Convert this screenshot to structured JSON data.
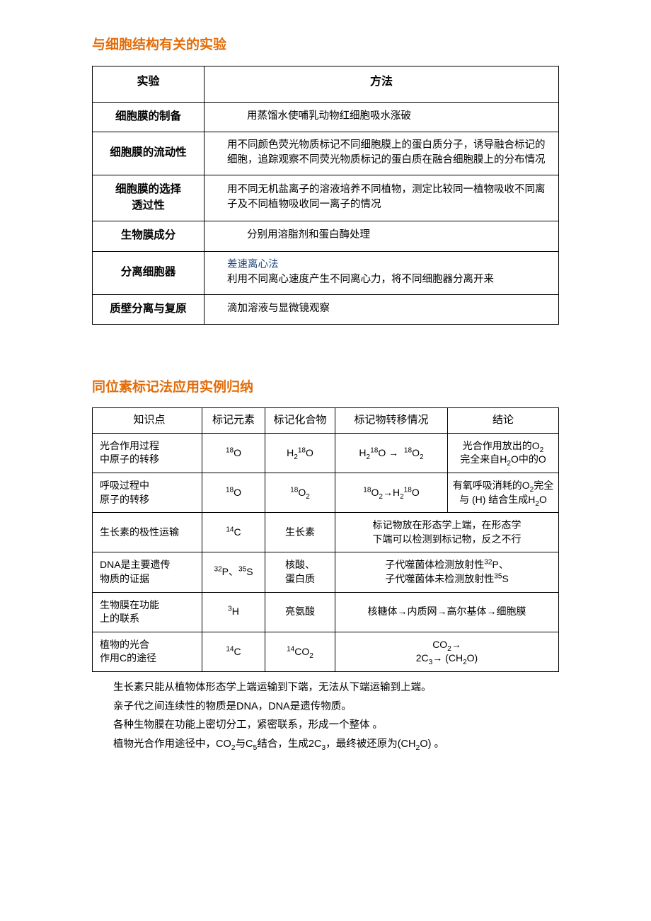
{
  "title1": "与细胞结构有关的实验",
  "title2": "同位素标记法应用实例归纳",
  "colors": {
    "title": "#e36c09",
    "highlight": "#1f497d",
    "text": "#000000",
    "border": "#000000",
    "background": "#ffffff"
  },
  "table1": {
    "headers": {
      "exp": "实验",
      "method": "方法"
    },
    "rows_count": 6
  },
  "t1r1exp": "细胞膜的制备",
  "t1r1m": "用蒸馏水使哺乳动物红细胞吸水涨破",
  "t1r2exp": "细胞膜的流动性",
  "t1r2m": "用不同颜色荧光物质标记不同细胞膜上的蛋白质分子，诱导融合标记的细胞，追踪观察不同荧光物质标记的蛋白质在融合细胞膜上的分布情况",
  "t1r3exp": "细胞膜的选择<br>透过性",
  "t1r3m": "用不同无机盐离子的溶液培养不同植物，测定比较同一植物吸收不同离子及不同植物吸收同一离子的情况",
  "t1r4exp": "生物膜成分",
  "t1r4m": "分别用溶脂剂和蛋白酶处理",
  "t1r5exp": "分离细胞器",
  "t1r5m_hl": "差速离心法",
  "t1r5m": "利用不同离心速度产生不同离心力，将不同细胞器分离开来",
  "t1r6exp": "质壁分离与复原",
  "t1r6m": "滴加溶液与显微镜观察",
  "table2": {
    "headers": {
      "c1": "知识点",
      "c2": "标记元素",
      "c3": "标记化合物",
      "c4": "标记物转移情况",
      "c5": "结论"
    },
    "rows_count": 6
  },
  "t2r1c1": "光合作用过程<br>中原子的转移",
  "t2r1c2": "<sup>18</sup>O",
  "t2r1c3": "H<sub>2</sub><sup>18</sup>O",
  "t2r1c4": "H<sub>2</sub><sup>18</sup>O →&nbsp;&nbsp;<sup>18</sup>O<sub>2</sub>",
  "t2r1c5": "光合作用放出的O<sub>2</sub><br>完全来自H<sub>2</sub>O中的O",
  "t2r2c1": "呼吸过程中<br>原子的转移",
  "t2r2c2": "<sup>18</sup>O",
  "t2r2c3": "<sup>18</sup>O<sub>2</sub>",
  "t2r2c4": "<sup>18</sup>O<sub>2</sub>→H<sub>2</sub><sup>18</sup>O",
  "t2r2c5": "有氧呼吸消耗的O<sub>2</sub>完全<br>与 (H) 结合生成H<sub>2</sub>O",
  "t2r3c1": "生长素的极性运输",
  "t2r3c2": "<sup>14</sup>C",
  "t2r3c3": "生长素",
  "t2r3c45": "标记物放在形态学上端，在形态学<br>下端可以检测到标记物，反之不行",
  "t2r4c1": "DNA是主要遗传<br>物质的证据",
  "t2r4c2": "<sup>32</sup>P、<sup>35</sup>S",
  "t2r4c3": "核酸、<br>蛋白质",
  "t2r4c45": "子代噬菌体检测放射性<sup>32</sup>P、<br>子代噬菌体未检测放射性<sup>35</sup>S",
  "t2r5c1": "生物膜在功能<br>上的联系",
  "t2r5c2": "<sup>3</sup>H",
  "t2r5c3": "亮氨酸",
  "t2r5c45": "核糖体→内质网→高尔基体→细胞膜",
  "t2r6c1": "植物的光合<br>作用C的途径",
  "t2r6c2": "<sup>14</sup>C",
  "t2r6c3": "<sup>14</sup>CO<sub>2</sub>",
  "t2r6c45": "CO<sub>2</sub>→<br>2C<sub>3</sub>→ (CH<sub>2</sub>O)",
  "note1": "生长素只能从植物体形态学上端运输到下端，无法从下端运输到上端。",
  "note2": "亲子代之间连续性的物质是DNA，DNA是遗传物质。",
  "note3": "各种生物膜在功能上密切分工，紧密联系，形成一个整体 。",
  "note4": "植物光合作用途径中，CO<sub>2</sub>与C<sub>5</sub>结合，生成2C<sub>3</sub>，最终被还原为(CH<sub>2</sub>O) 。"
}
